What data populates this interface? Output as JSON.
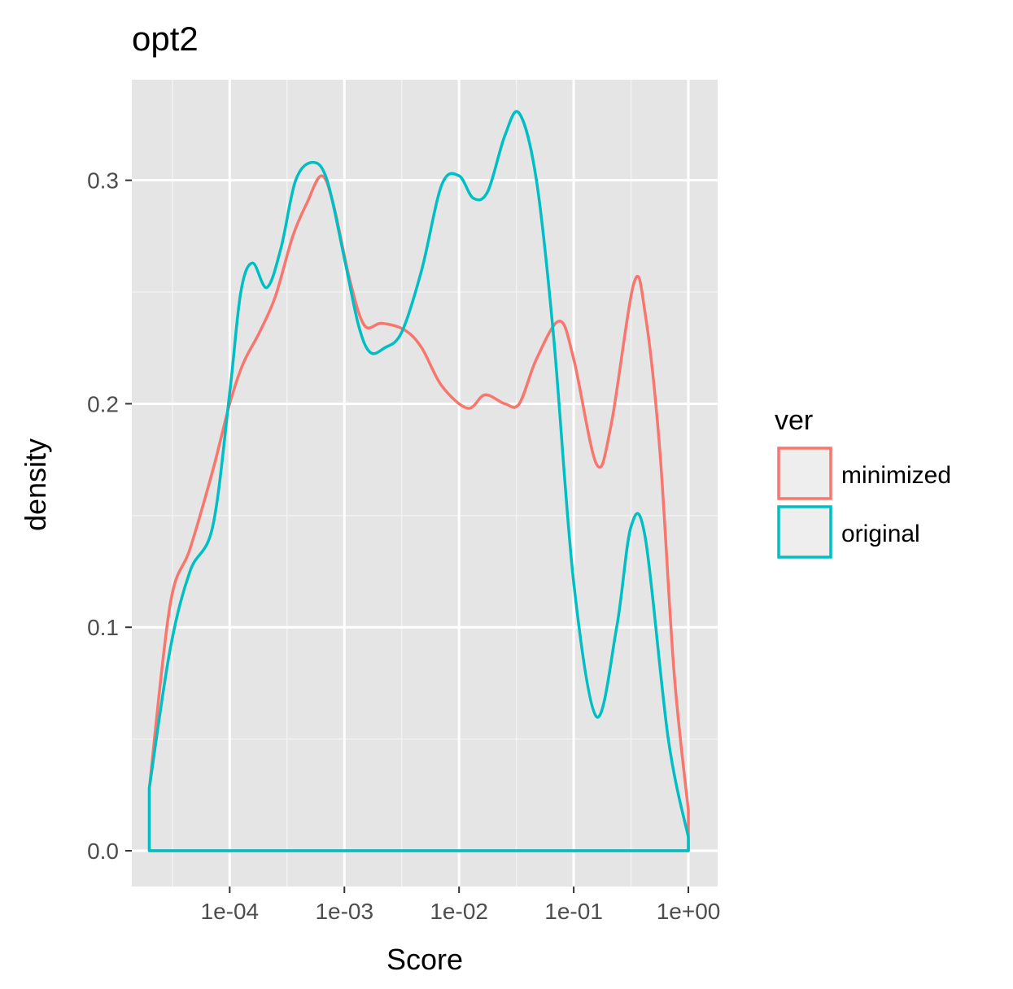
{
  "chart_data": {
    "type": "line",
    "title": "opt2",
    "xlabel": "Score",
    "ylabel": "density",
    "x_scale": "log10",
    "xlim": [
      1.4e-05,
      1.8
    ],
    "ylim": [
      -0.016,
      0.345
    ],
    "x_ticks": [
      {
        "value": 0.0001,
        "label": "1e-04"
      },
      {
        "value": 0.001,
        "label": "1e-03"
      },
      {
        "value": 0.01,
        "label": "1e-02"
      },
      {
        "value": 0.1,
        "label": "1e-01"
      },
      {
        "value": 1,
        "label": "1e+00"
      }
    ],
    "y_ticks": [
      {
        "value": 0.0,
        "label": "0.0"
      },
      {
        "value": 0.1,
        "label": "0.1"
      },
      {
        "value": 0.2,
        "label": "0.2"
      },
      {
        "value": 0.3,
        "label": "0.3"
      }
    ],
    "grid": true,
    "panel_background": "#e5e5e5",
    "legend": {
      "title": "ver",
      "position": "right",
      "entries": [
        {
          "label": "minimized",
          "color": "#f8766d"
        },
        {
          "label": "original",
          "color": "#00bfc4"
        }
      ]
    },
    "series": [
      {
        "name": "minimized",
        "color": "#f8766d",
        "x": [
          1.99e-05,
          3.02e-05,
          4.5e-05,
          7.1e-05,
          0.0001,
          0.000131,
          0.000182,
          0.00025,
          0.000355,
          0.000473,
          0.00063,
          0.000795,
          0.00112,
          0.0015,
          0.00211,
          0.00335,
          0.00473,
          0.00707,
          0.0119,
          0.0168,
          0.0251,
          0.0335,
          0.0473,
          0.075,
          0.1,
          0.158,
          0.211,
          0.335,
          0.421,
          0.562,
          0.75,
          1
        ],
        "y": [
          0.028,
          0.11,
          0.135,
          0.17,
          0.2,
          0.218,
          0.232,
          0.248,
          0.275,
          0.29,
          0.302,
          0.29,
          0.255,
          0.235,
          0.236,
          0.233,
          0.225,
          0.208,
          0.198,
          0.204,
          0.2,
          0.2,
          0.22,
          0.237,
          0.22,
          0.173,
          0.19,
          0.254,
          0.24,
          0.18,
          0.08,
          0.018
        ]
      },
      {
        "name": "original",
        "color": "#00bfc4",
        "x": [
          1.99e-05,
          3.02e-05,
          4.5e-05,
          7.1e-05,
          0.0001,
          0.000125,
          0.000158,
          0.000211,
          0.000281,
          0.000376,
          0.00053,
          0.000707,
          0.001,
          0.00133,
          0.00168,
          0.00224,
          0.00316,
          0.00473,
          0.00707,
          0.01,
          0.0133,
          0.0178,
          0.0251,
          0.0335,
          0.0473,
          0.0668,
          0.1,
          0.158,
          0.237,
          0.316,
          0.421,
          0.668,
          1
        ],
        "y": [
          0.028,
          0.09,
          0.125,
          0.145,
          0.205,
          0.25,
          0.263,
          0.252,
          0.27,
          0.3,
          0.308,
          0.3,
          0.265,
          0.235,
          0.223,
          0.225,
          0.232,
          0.26,
          0.298,
          0.302,
          0.292,
          0.295,
          0.32,
          0.33,
          0.3,
          0.23,
          0.12,
          0.06,
          0.1,
          0.145,
          0.14,
          0.05,
          0.006
        ]
      }
    ]
  }
}
